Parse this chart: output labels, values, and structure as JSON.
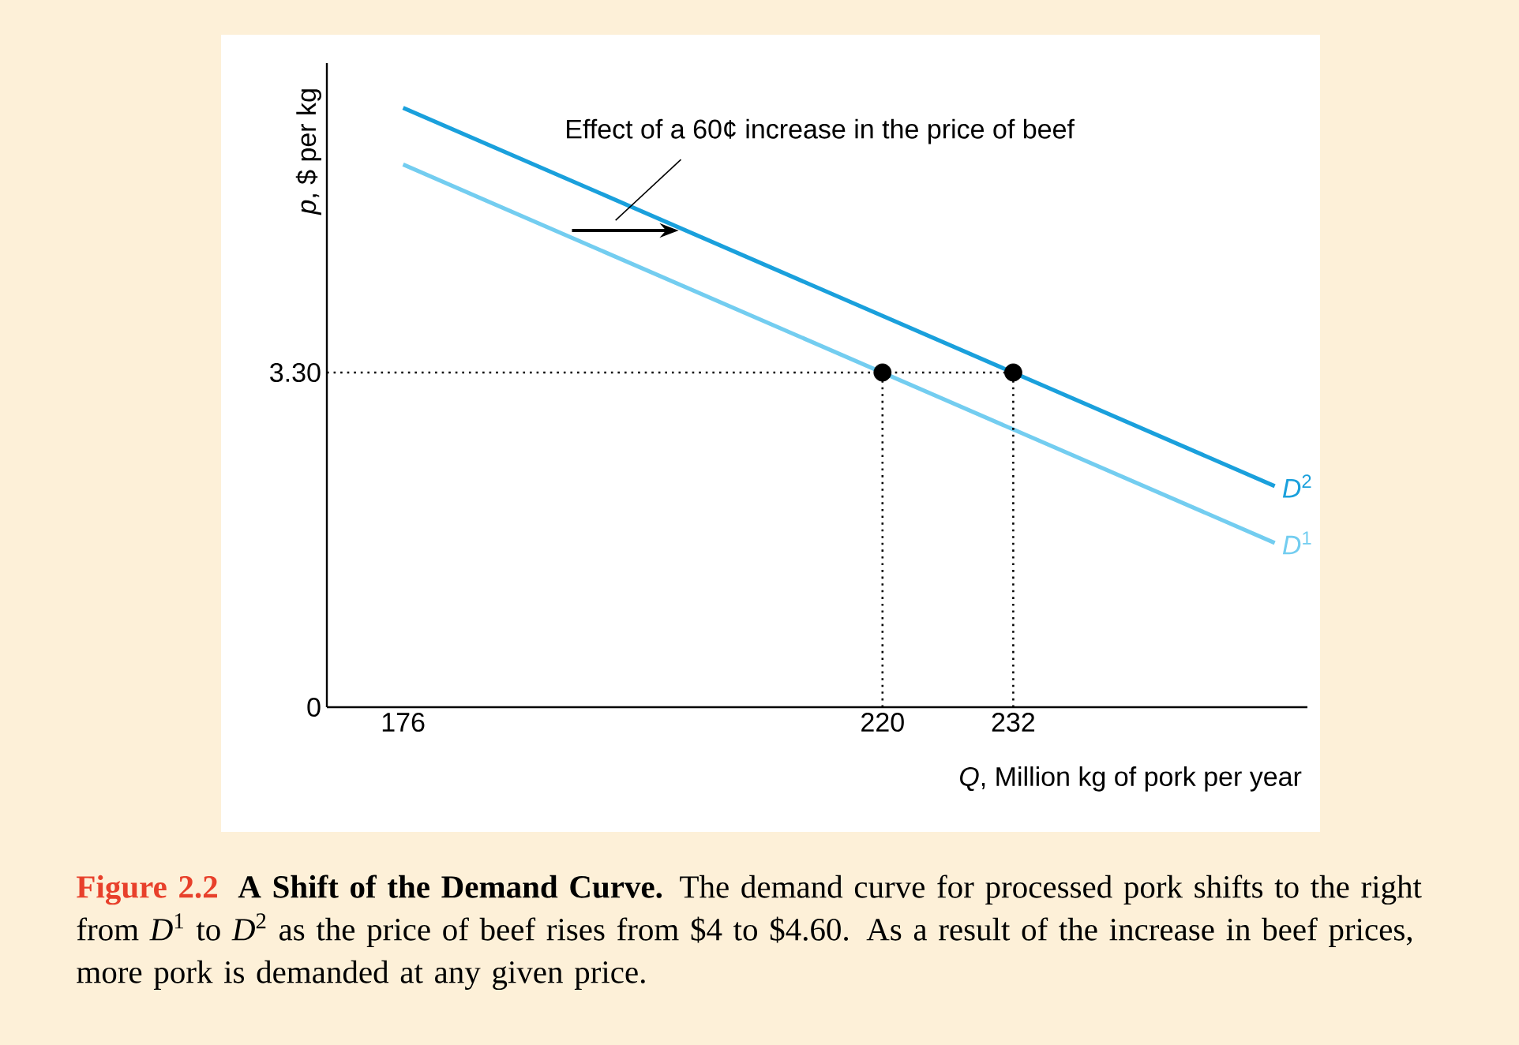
{
  "chart_data": {
    "type": "line",
    "xlabel": "*Q*, Million kg of pork per year",
    "ylabel": "*p*, $ per kg",
    "xlim": [
      169,
      259
    ],
    "ylim": [
      0,
      6.35
    ],
    "xticks": [
      176,
      220,
      232
    ],
    "yticks": [
      0,
      {
        "value": 3.3,
        "label": "3.30"
      }
    ],
    "series": [
      {
        "name": "*D*$^{1}$",
        "color": "#73cdf0",
        "x": [
          176,
          256
        ],
        "values": [
          5.35,
          1.62
        ],
        "marker": "none",
        "line_style": "solid"
      },
      {
        "name": "*D*$^{2}$",
        "color": "#1aa0dc",
        "x": [
          176,
          256
        ],
        "values": [
          5.91,
          2.18
        ],
        "marker": "none",
        "line_style": "solid"
      },
      {
        "type": "line",
        "color": "#000000",
        "x": [
          169,
          232
        ],
        "values": [
          3.3,
          3.3
        ],
        "marker": "none",
        "line_style": "dotted"
      },
      {
        "type": "line",
        "color": "#000000",
        "x": [
          220,
          220
        ],
        "values": [
          0,
          3.3
        ],
        "marker": "none",
        "line_style": "dotted"
      },
      {
        "type": "line",
        "color": "#000000",
        "x": [
          232,
          232
        ],
        "values": [
          0,
          3.3
        ],
        "marker": "none",
        "line_style": "dotted"
      },
      {
        "type": "scatter",
        "color": "#000000",
        "x": [
          220,
          232
        ],
        "values": [
          3.3,
          3.3
        ],
        "marker": "circle"
      }
    ],
    "annotations": [
      "Effect of a 60¢ increase in the price of beef",
      "Figure 2.2",
      "**A Shift of the Demand Curve.** The demand curve for processed pork shifts to the right from *D*$^{1}$ to *D*$^{2}$ as the price of beef rises from $4 to $4.60. As a result of the increase in beef prices, more pork is demanded at any given price."
    ]
  }
}
